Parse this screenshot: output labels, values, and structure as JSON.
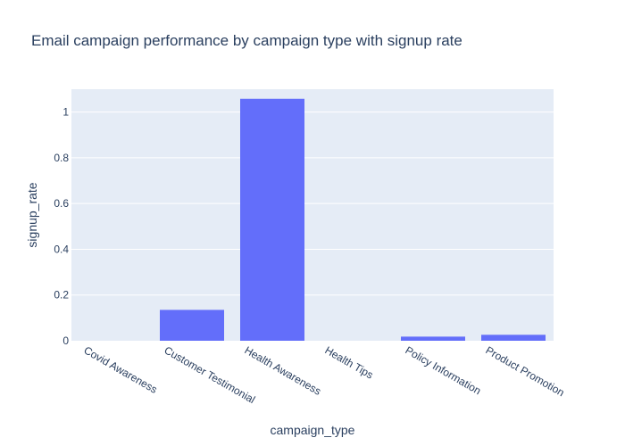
{
  "chart_data": {
    "type": "bar",
    "title": "Email campaign performance by campaign type with signup rate",
    "xlabel": "campaign_type",
    "ylabel": "signup_rate",
    "categories": [
      "Covid Awareness",
      "Customer Testimonial",
      "Health Awareness",
      "Health Tips",
      "Policy Information",
      "Product Promotion"
    ],
    "values": [
      0.0,
      0.135,
      1.058,
      0.0,
      0.018,
      0.026
    ],
    "ylim": [
      0,
      1.1
    ],
    "yticks": [
      0,
      0.2,
      0.4,
      0.6,
      0.8,
      1
    ],
    "ytick_labels": [
      "0",
      "0.2",
      "0.4",
      "0.6",
      "0.8",
      "1"
    ],
    "grid": true,
    "colors": {
      "bar": "#636efa",
      "plot_background": "#e5ecf6",
      "grid": "#ffffff",
      "text": "#2a3f5f"
    }
  }
}
